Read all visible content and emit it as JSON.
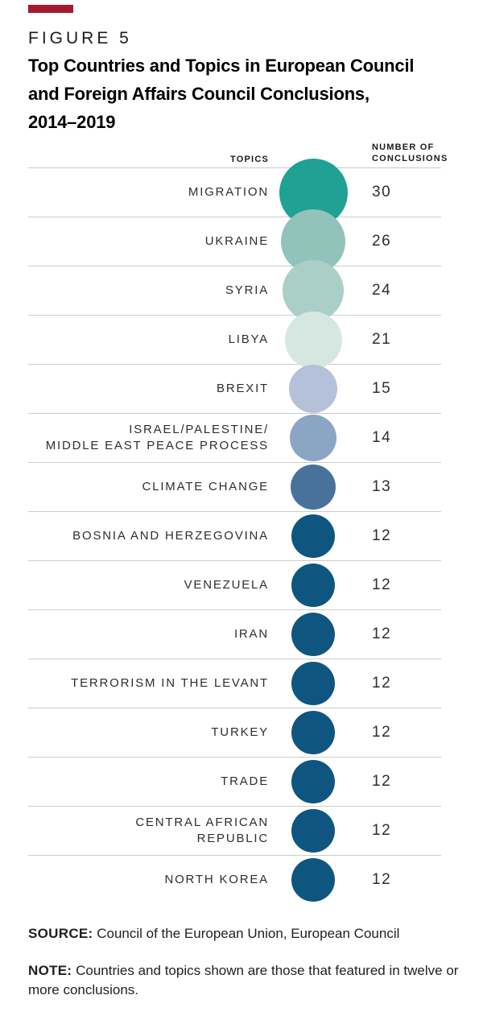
{
  "header": {
    "kicker": "FIGURE 5",
    "title_lines": [
      "Top Countries and Topics in European Council",
      "and Foreign Affairs Council Conclusions,",
      "2014–2019"
    ],
    "accent_color": "#A6192E"
  },
  "table_header": {
    "topics_label": "TOPICS",
    "value_label_lines": [
      "NUMBER OF",
      "CONCLUSIONS"
    ]
  },
  "chart_data": {
    "type": "table",
    "title": "Top Countries and Topics in European Council and Foreign Affairs Council Conclusions, 2014–2019",
    "columns": [
      "TOPICS",
      "NUMBER OF CONCLUSIONS"
    ],
    "categories": [
      "MIGRATION",
      "UKRAINE",
      "SYRIA",
      "LIBYA",
      "BREXIT",
      "ISRAEL/PALESTINE/ MIDDLE EAST PEACE PROCESS",
      "CLIMATE CHANGE",
      "BOSNIA AND HERZEGOVINA",
      "VENEZUELA",
      "IRAN",
      "TERRORISM IN THE LEVANT",
      "TURKEY",
      "TRADE",
      "CENTRAL AFRICAN REPUBLIC",
      "NORTH KOREA"
    ],
    "label_lines": [
      [
        "MIGRATION"
      ],
      [
        "UKRAINE"
      ],
      [
        "SYRIA"
      ],
      [
        "LIBYA"
      ],
      [
        "BREXIT"
      ],
      [
        "ISRAEL/PALESTINE/",
        "MIDDLE EAST PEACE PROCESS"
      ],
      [
        "CLIMATE CHANGE"
      ],
      [
        "BOSNIA AND HERZEGOVINA"
      ],
      [
        "VENEZUELA"
      ],
      [
        "IRAN"
      ],
      [
        "TERRORISM IN THE LEVANT"
      ],
      [
        "TURKEY"
      ],
      [
        "TRADE"
      ],
      [
        "CENTRAL AFRICAN",
        "REPUBLIC"
      ],
      [
        "NORTH KOREA"
      ]
    ],
    "values": [
      30,
      26,
      24,
      21,
      15,
      14,
      13,
      12,
      12,
      12,
      12,
      12,
      12,
      12,
      12
    ],
    "bubble_colors": [
      "#1FA294",
      "#92C3BA",
      "#A9CFC7",
      "#D6E7E1",
      "#B4C1D9",
      "#8BA6C4",
      "#48729C",
      "#0E567F",
      "#0E567F",
      "#0E567F",
      "#0E567F",
      "#0E567F",
      "#0E567F",
      "#0E567F",
      "#0E567F"
    ],
    "layout": "single bubble column between right-aligned topic labels and left-aligned values; bubble diameter proportional to sqrt(value); later bubbles drawn on top; light gray separator line between rows"
  },
  "footer": {
    "source_label": "SOURCE:",
    "source_text": "Council of the European Union, European Council",
    "note_label": "NOTE:",
    "note_text": "Countries and topics shown are those that featured in twelve or more conclusions."
  }
}
